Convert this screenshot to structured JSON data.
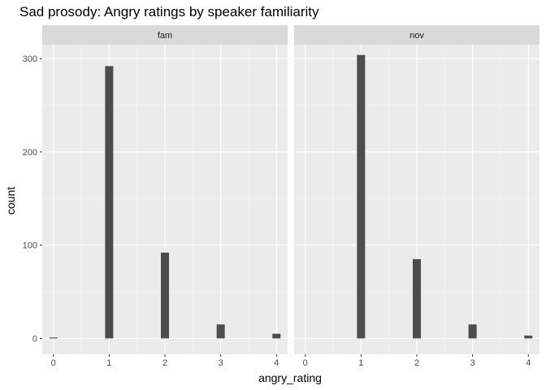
{
  "chart_data": {
    "type": "bar",
    "title": "Sad prosody: Angry ratings by speaker familiarity",
    "xlabel": "angry_rating",
    "ylabel": "count",
    "x_ticks": [
      "0",
      "1",
      "2",
      "3",
      "4"
    ],
    "y_ticks": [
      "0",
      "100",
      "200",
      "300"
    ],
    "xlim": [
      -0.2,
      4.2
    ],
    "ylim": [
      -17,
      315
    ],
    "grid": true,
    "facets": [
      {
        "strip": "fam",
        "x": [
          0,
          1,
          2,
          3,
          4
        ],
        "values": [
          1,
          292,
          92,
          15,
          5
        ]
      },
      {
        "strip": "nov",
        "x": [
          0,
          1,
          2,
          3,
          4
        ],
        "values": [
          0,
          304,
          85,
          15,
          3
        ]
      }
    ],
    "colors": {
      "bar": "#4d4d4d",
      "panel": "#ebebeb",
      "strip": "#d9d9d9",
      "grid_major": "#ffffff"
    }
  }
}
